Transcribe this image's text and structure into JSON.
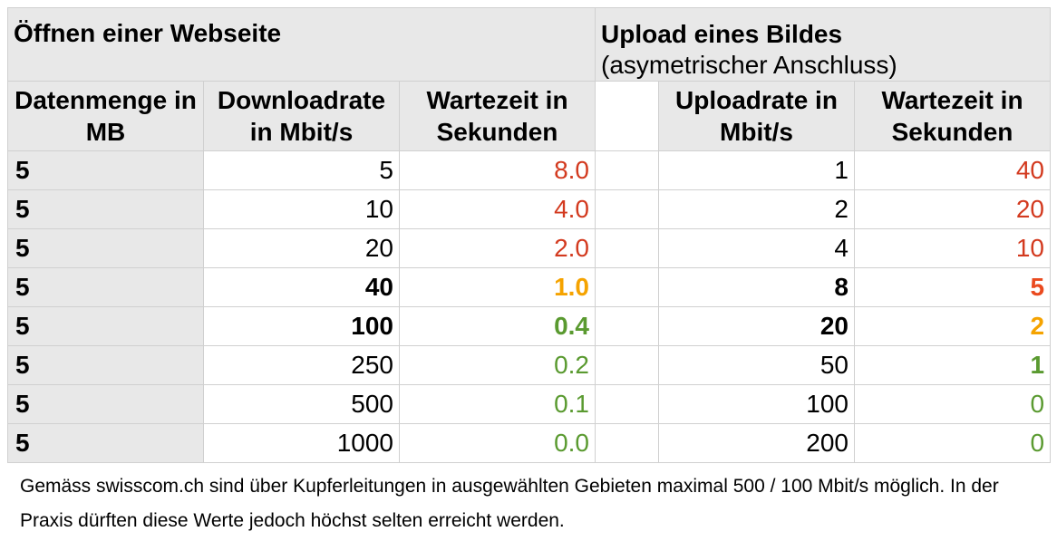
{
  "titles": {
    "left": "Öffnen einer Webseite",
    "right_main": "Upload eines Bildes",
    "right_sub": "(asymetrischer Anschluss)"
  },
  "headers": {
    "datenmenge": "Datenmenge in MB",
    "downloadrate": "Downloadrate in Mbit/s",
    "wartezeit_download": "Wartezeit in Sekunden",
    "uploadrate": "Uploadrate in Mbit/s",
    "wartezeit_upload": "Wartezeit in Sekunden"
  },
  "rows": [
    {
      "mb": "5",
      "down": "5",
      "wait_down": "8.0",
      "up": "1",
      "wait_up": "40"
    },
    {
      "mb": "5",
      "down": "10",
      "wait_down": "4.0",
      "up": "2",
      "wait_up": "20"
    },
    {
      "mb": "5",
      "down": "20",
      "wait_down": "2.0",
      "up": "4",
      "wait_up": "10"
    },
    {
      "mb": "5",
      "down": "40",
      "wait_down": "1.0",
      "up": "8",
      "wait_up": "5"
    },
    {
      "mb": "5",
      "down": "100",
      "wait_down": "0.4",
      "up": "20",
      "wait_up": "2"
    },
    {
      "mb": "5",
      "down": "250",
      "wait_down": "0.2",
      "up": "50",
      "wait_up": "1"
    },
    {
      "mb": "5",
      "down": "500",
      "wait_down": "0.1",
      "up": "100",
      "wait_up": "0"
    },
    {
      "mb": "5",
      "down": "1000",
      "wait_down": "0.0",
      "up": "200",
      "wait_up": "0"
    }
  ],
  "colors": {
    "red": "#d33a1f",
    "orange": "#f5a300",
    "red_orange": "#ea4a1f",
    "green": "#5a9a30",
    "header_bg": "#e8e8e8"
  },
  "footnote": "Gemäss swisscom.ch sind über Kupferleitungen in ausgewählten Gebieten maximal 500 / 100 Mbit/s möglich. In der Praxis dürften diese Werte jedoch höchst selten erreicht werden."
}
